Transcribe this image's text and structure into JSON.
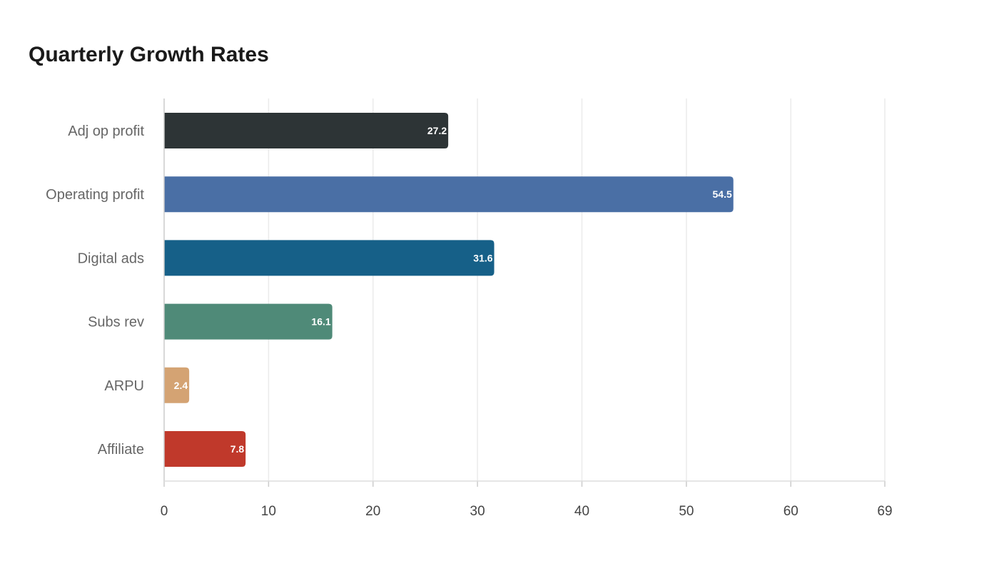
{
  "chart_data": {
    "type": "bar",
    "orientation": "horizontal",
    "title": "Quarterly Growth Rates",
    "xlabel": "",
    "ylabel": "",
    "categories": [
      "Adj op profit",
      "Operating profit",
      "Digital ads",
      "Subs rev",
      "ARPU",
      "Affiliate"
    ],
    "values": [
      27.2,
      54.5,
      31.6,
      16.1,
      2.4,
      7.8
    ],
    "colors": [
      "#2d3436",
      "#4a6fa5",
      "#166088",
      "#4f8a78",
      "#d4a373",
      "#c0392b"
    ],
    "xlim": [
      0,
      69
    ],
    "xticks": [
      0,
      10,
      20,
      30,
      40,
      50,
      60,
      69
    ],
    "grid": true,
    "legend": "none"
  }
}
